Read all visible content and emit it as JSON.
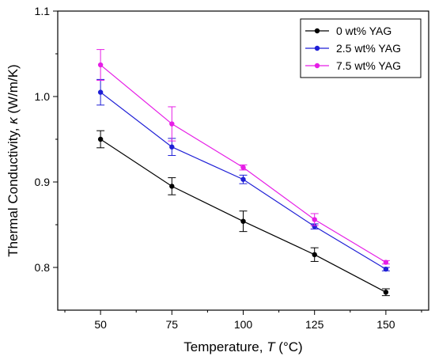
{
  "chart_data": {
    "type": "line",
    "xlabel": "Temperature, ",
    "xlabel_var": "T",
    "xlabel_unit": " (°C)",
    "ylabel": "Thermal Conductivity, ",
    "ylabel_var": "κ",
    "ylabel_unit": " (W/m/K)",
    "x": [
      50,
      75,
      100,
      125,
      150
    ],
    "xlim": [
      35,
      165
    ],
    "ylim": [
      0.75,
      1.1
    ],
    "xticks": [
      50,
      75,
      100,
      125,
      150
    ],
    "xtick_labels": [
      "50",
      "75",
      "100",
      "125",
      "150"
    ],
    "yticks": [
      0.8,
      0.9,
      1.0,
      1.1
    ],
    "ytick_labels": [
      "0.8",
      "0.9",
      "1.0",
      "1.1"
    ],
    "grid": false,
    "legend_position": "top-right",
    "error_bars": true,
    "series": [
      {
        "name": "0 wt% YAG",
        "color": "#000000",
        "values": [
          0.95,
          0.895,
          0.854,
          0.815,
          0.771
        ],
        "errors": [
          0.01,
          0.01,
          0.012,
          0.008,
          0.004
        ]
      },
      {
        "name": "2.5 wt% YAG",
        "color": "#1f1fd6",
        "values": [
          1.005,
          0.941,
          0.903,
          0.848,
          0.798
        ],
        "errors": [
          0.015,
          0.01,
          0.005,
          0.003,
          0.002
        ]
      },
      {
        "name": "7.5 wt% YAG",
        "color": "#e61ee6",
        "values": [
          1.037,
          0.968,
          0.917,
          0.856,
          0.806
        ],
        "errors": [
          0.018,
          0.02,
          0.003,
          0.007,
          0.002
        ]
      }
    ]
  }
}
